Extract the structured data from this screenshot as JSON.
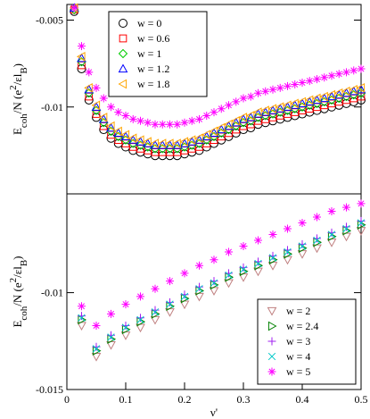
{
  "chart_data": [
    {
      "type": "scatter",
      "ylabel": [
        {
          "text": "E"
        },
        {
          "text": "coh",
          "shift": "sub"
        },
        {
          "text": "/N (e"
        },
        {
          "text": "2",
          "shift": "super"
        },
        {
          "text": "/εl"
        },
        {
          "text": "B",
          "shift": "sub"
        },
        {
          "text": ")"
        }
      ],
      "xlim": [
        0,
        0.5
      ],
      "ylim": [
        -0.015,
        -0.0041
      ],
      "yticks": [
        -0.015,
        -0.01,
        -0.005
      ],
      "legend": "upper center",
      "x": [
        0.0125,
        0.025,
        0.0375,
        0.05,
        0.0625,
        0.075,
        0.0875,
        0.1,
        0.1125,
        0.125,
        0.1375,
        0.15,
        0.1625,
        0.175,
        0.1875,
        0.2,
        0.2125,
        0.225,
        0.2375,
        0.25,
        0.2625,
        0.275,
        0.2875,
        0.3,
        0.3125,
        0.325,
        0.3375,
        0.35,
        0.3625,
        0.375,
        0.3875,
        0.4,
        0.4125,
        0.425,
        0.4375,
        0.45,
        0.4625,
        0.475,
        0.4875,
        0.5
      ],
      "series": [
        {
          "name": "w = 0",
          "color": "#000000",
          "marker": "circle",
          "values": [
            -0.0045,
            -0.0078,
            -0.0096,
            -0.0106,
            -0.0113,
            -0.0118,
            -0.0121,
            -0.0123,
            -0.0125,
            -0.0126,
            -0.0127,
            -0.0128,
            -0.0128,
            -0.0128,
            -0.0128,
            -0.0127,
            -0.0126,
            -0.0125,
            -0.0123,
            -0.0121,
            -0.0119,
            -0.0117,
            -0.0115,
            -0.0113,
            -0.0112,
            -0.011,
            -0.0109,
            -0.0108,
            -0.0107,
            -0.0106,
            -0.0105,
            -0.0104,
            -0.0103,
            -0.0102,
            -0.0101,
            -0.01,
            -0.0099,
            -0.0098,
            -0.0097,
            -0.0096
          ]
        },
        {
          "name": "w = 0.6",
          "color": "#ff0000",
          "marker": "square",
          "values": [
            -0.0044,
            -0.0076,
            -0.0094,
            -0.0104,
            -0.0111,
            -0.0116,
            -0.0119,
            -0.0121,
            -0.0123,
            -0.0124,
            -0.0125,
            -0.0126,
            -0.0126,
            -0.0126,
            -0.0126,
            -0.0125,
            -0.0124,
            -0.0123,
            -0.0121,
            -0.0119,
            -0.0117,
            -0.0115,
            -0.0113,
            -0.0111,
            -0.011,
            -0.0108,
            -0.0107,
            -0.0106,
            -0.0105,
            -0.0104,
            -0.0103,
            -0.0102,
            -0.0101,
            -0.01,
            -0.0099,
            -0.0098,
            -0.0097,
            -0.0096,
            -0.0095,
            -0.0094
          ]
        },
        {
          "name": "w = 1",
          "color": "#00cc00",
          "marker": "diamond",
          "values": [
            -0.0044,
            -0.0074,
            -0.0092,
            -0.0102,
            -0.0109,
            -0.0114,
            -0.0117,
            -0.0119,
            -0.0121,
            -0.0122,
            -0.0123,
            -0.0124,
            -0.0124,
            -0.0124,
            -0.0124,
            -0.0123,
            -0.0122,
            -0.0121,
            -0.0119,
            -0.0117,
            -0.0115,
            -0.0113,
            -0.0111,
            -0.0109,
            -0.0108,
            -0.0106,
            -0.0105,
            -0.0104,
            -0.0103,
            -0.0102,
            -0.0101,
            -0.01,
            -0.0099,
            -0.0098,
            -0.0097,
            -0.0096,
            -0.0095,
            -0.0094,
            -0.0093,
            -0.0092
          ]
        },
        {
          "name": "w = 1.2",
          "color": "#0000ff",
          "marker": "up",
          "values": [
            -0.0043,
            -0.0072,
            -0.009,
            -0.01,
            -0.0107,
            -0.0112,
            -0.0115,
            -0.0117,
            -0.0119,
            -0.012,
            -0.0121,
            -0.0122,
            -0.0122,
            -0.0122,
            -0.0122,
            -0.0121,
            -0.012,
            -0.0119,
            -0.0117,
            -0.0115,
            -0.0113,
            -0.0111,
            -0.0109,
            -0.0107,
            -0.0106,
            -0.0104,
            -0.0103,
            -0.0102,
            -0.0101,
            -0.01,
            -0.0099,
            -0.0098,
            -0.0097,
            -0.0096,
            -0.0095,
            -0.0094,
            -0.0093,
            -0.0092,
            -0.0091,
            -0.009
          ]
        },
        {
          "name": "w = 1.8",
          "color": "#ffa500",
          "marker": "left",
          "values": [
            -0.0043,
            -0.0071,
            -0.0089,
            -0.0099,
            -0.0106,
            -0.0111,
            -0.0114,
            -0.0116,
            -0.0118,
            -0.0119,
            -0.012,
            -0.0121,
            -0.0121,
            -0.0121,
            -0.0121,
            -0.012,
            -0.0119,
            -0.0118,
            -0.0116,
            -0.0114,
            -0.0112,
            -0.011,
            -0.0108,
            -0.0106,
            -0.0105,
            -0.0103,
            -0.0102,
            -0.0101,
            -0.01,
            -0.0099,
            -0.0098,
            -0.0097,
            -0.0096,
            -0.0095,
            -0.0094,
            -0.0093,
            -0.0092,
            -0.0091,
            -0.009,
            -0.0089
          ]
        },
        {
          "color": "#ff00ff",
          "marker": "star",
          "values": [
            -0.0043,
            -0.0065,
            -0.008,
            -0.0089,
            -0.0095,
            -0.01,
            -0.0103,
            -0.0105,
            -0.0107,
            -0.0108,
            -0.0109,
            -0.011,
            -0.011,
            -0.011,
            -0.011,
            -0.0109,
            -0.0108,
            -0.0107,
            -0.0105,
            -0.0103,
            -0.0101,
            -0.0099,
            -0.0097,
            -0.0095,
            -0.0094,
            -0.0092,
            -0.0091,
            -0.009,
            -0.0089,
            -0.0088,
            -0.0087,
            -0.0086,
            -0.0085,
            -0.0084,
            -0.0083,
            -0.0082,
            -0.0081,
            -0.008,
            -0.0079,
            -0.0078
          ]
        }
      ]
    },
    {
      "type": "scatter",
      "ylabel": [
        {
          "text": "E"
        },
        {
          "text": "coh",
          "shift": "sub"
        },
        {
          "text": "/N (e"
        },
        {
          "text": "2",
          "shift": "super"
        },
        {
          "text": "/εl"
        },
        {
          "text": "B",
          "shift": "sub"
        },
        {
          "text": ")"
        }
      ],
      "xlabel": "ν'",
      "xlim": [
        0,
        0.5
      ],
      "xticks": [
        0,
        0.1,
        0.2,
        0.3,
        0.4,
        0.5
      ],
      "ylim": [
        -0.015,
        -0.0049
      ],
      "yticks": [
        -0.015,
        -0.01
      ],
      "legend": "lower right",
      "x": [
        0.025,
        0.05,
        0.075,
        0.1,
        0.125,
        0.15,
        0.175,
        0.2,
        0.225,
        0.25,
        0.275,
        0.3,
        0.325,
        0.35,
        0.375,
        0.4,
        0.425,
        0.45,
        0.475,
        0.5
      ],
      "series": [
        {
          "name": "w = 2",
          "color": "#c08080",
          "marker": "down",
          "values": [
            -0.0117,
            -0.0133,
            -0.0127,
            -0.0122,
            -0.0118,
            -0.0114,
            -0.011,
            -0.0106,
            -0.0102,
            -0.0099,
            -0.0095,
            -0.0092,
            -0.0089,
            -0.0086,
            -0.0083,
            -0.008,
            -0.0077,
            -0.0074,
            -0.0071,
            -0.0068
          ]
        },
        {
          "name": "w = 2.4",
          "color": "#008000",
          "marker": "right",
          "values": [
            -0.0114,
            -0.013,
            -0.0124,
            -0.0119,
            -0.0115,
            -0.0111,
            -0.0107,
            -0.0103,
            -0.0099,
            -0.0096,
            -0.0092,
            -0.0089,
            -0.0086,
            -0.0083,
            -0.008,
            -0.0077,
            -0.0074,
            -0.0071,
            -0.0068,
            -0.0065
          ]
        },
        {
          "name": "w = 3",
          "color": "#a020f0",
          "marker": "plus",
          "values": [
            -0.0112,
            -0.0128,
            -0.0122,
            -0.0117,
            -0.0113,
            -0.0109,
            -0.0105,
            -0.0101,
            -0.0097,
            -0.0094,
            -0.009,
            -0.0087,
            -0.0084,
            -0.0081,
            -0.0078,
            -0.0075,
            -0.0072,
            -0.0069,
            -0.0066,
            -0.0063
          ]
        },
        {
          "name": "w = 4",
          "color": "#00c8c8",
          "marker": "x",
          "values": [
            -0.0113,
            -0.0129,
            -0.0123,
            -0.0118,
            -0.0114,
            -0.011,
            -0.0106,
            -0.0102,
            -0.0098,
            -0.0095,
            -0.0091,
            -0.0088,
            -0.0085,
            -0.0082,
            -0.0079,
            -0.0076,
            -0.0073,
            -0.007,
            -0.0067,
            -0.0064
          ]
        },
        {
          "name": "w = 5",
          "color": "#ff00ff",
          "marker": "star",
          "values": [
            -0.0107,
            -0.0117,
            -0.0111,
            -0.0106,
            -0.0102,
            -0.0098,
            -0.0094,
            -0.009,
            -0.0086,
            -0.0083,
            -0.0079,
            -0.0076,
            -0.0073,
            -0.007,
            -0.0067,
            -0.0064,
            -0.0061,
            -0.0058,
            -0.0056,
            -0.0054
          ]
        }
      ]
    }
  ]
}
